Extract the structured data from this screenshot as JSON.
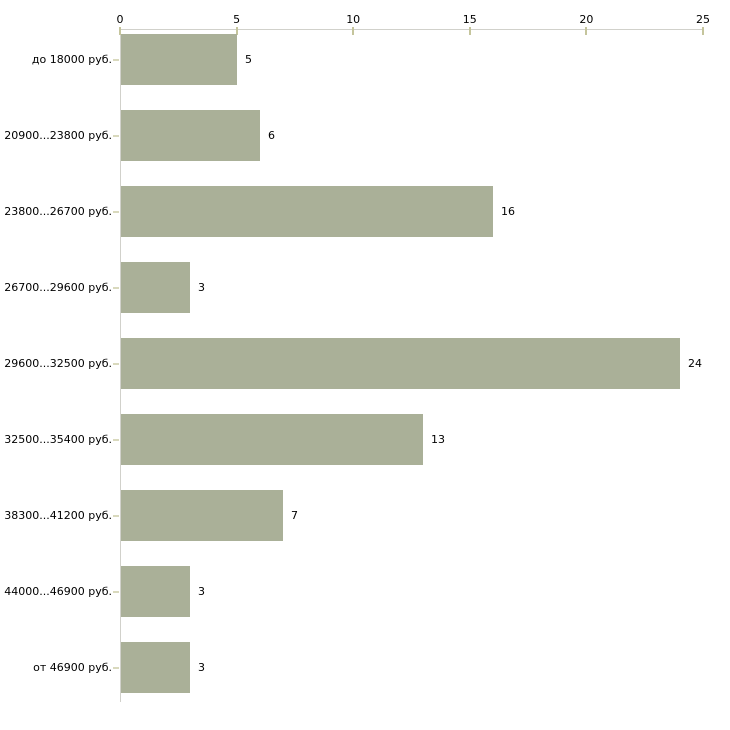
{
  "chart_data": {
    "type": "bar",
    "orientation": "horizontal",
    "title": "",
    "xlabel": "",
    "ylabel": "",
    "categories": [
      "до 18000 руб.",
      "20900...23800 руб.",
      "23800...26700 руб.",
      "26700...29600 руб.",
      "29600...32500 руб.",
      "32500...35400 руб.",
      "38300...41200 руб.",
      "44000...46900 руб.",
      "от 46900 руб."
    ],
    "values": [
      5,
      6,
      16,
      3,
      24,
      13,
      7,
      3,
      3
    ],
    "value_labels": [
      "5",
      "6",
      "16",
      "3",
      "24",
      "13",
      "7",
      "3",
      "3"
    ],
    "xticks": [
      0,
      5,
      10,
      15,
      20,
      25
    ],
    "xtick_labels": [
      "0",
      "5",
      "10",
      "15",
      "20",
      "25"
    ],
    "xlim": [
      0,
      25
    ],
    "axis_position": "top",
    "grid": false,
    "legend": false,
    "colors": {
      "bar": "#aab098",
      "axis_line": "#d1d1cb",
      "x_tick": "#c5c59c",
      "category_tick": "#d9d9bd",
      "text": "#000000",
      "background": "#ffffff"
    }
  }
}
